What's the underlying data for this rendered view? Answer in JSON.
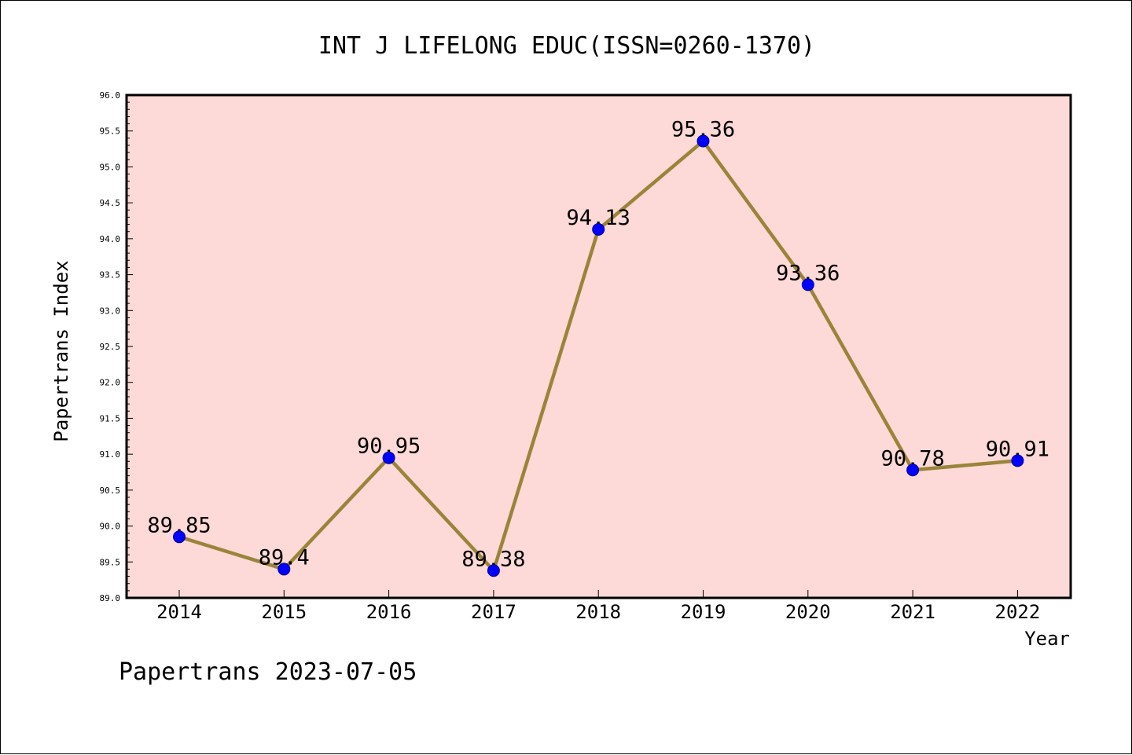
{
  "chart_data": {
    "type": "line",
    "title": "INT J LIFELONG EDUC(ISSN=0260-1370)",
    "xlabel": "Year",
    "ylabel": "Papertrans Index",
    "categories": [
      "2014",
      "2015",
      "2016",
      "2017",
      "2018",
      "2019",
      "2020",
      "2021",
      "2022"
    ],
    "series": [
      {
        "values": [
          89.85,
          89.4,
          90.95,
          89.38,
          94.13,
          95.36,
          93.36,
          90.78,
          90.91
        ],
        "labels": [
          "89.85",
          "89.4",
          "90.95",
          "89.38",
          "94.13",
          "95.36",
          "93.36",
          "90.78",
          "90.91"
        ]
      }
    ],
    "ylim": [
      89.0,
      96.0
    ],
    "yticks": [
      "89.0",
      "89.5",
      "90.0",
      "90.5",
      "91.0",
      "91.5",
      "92.0",
      "92.5",
      "93.0",
      "93.5",
      "94.0",
      "94.5",
      "95.0",
      "95.5",
      "96.0"
    ],
    "grid": false,
    "colors": {
      "plot_background": "#fdd9d7",
      "line": "#9a8439",
      "marker": "#0000ff",
      "marker_edge": "#00008b"
    }
  },
  "footer": {
    "text": "Papertrans 2023-07-05"
  }
}
